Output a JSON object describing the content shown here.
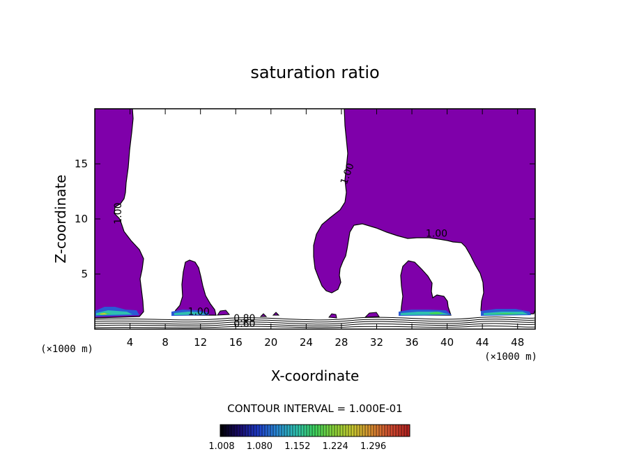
{
  "chart_data": {
    "type": "contour",
    "title": "saturation ratio",
    "xlabel": "X-coordinate",
    "ylabel": "Z-coordinate",
    "x_unit_label": "(×1000 m)",
    "xlim": [
      0,
      50
    ],
    "ylim": [
      0,
      20
    ],
    "x_ticks": [
      4,
      8,
      12,
      16,
      20,
      24,
      28,
      32,
      36,
      40,
      44,
      48
    ],
    "y_ticks": [
      5,
      10,
      15
    ],
    "contour_interval_text": "CONTOUR INTERVAL = 1.000E-01",
    "contour_labels": [
      {
        "text": "1.00",
        "x": 3.0,
        "z": 10.5
      },
      {
        "text": "1.00",
        "x": 29.0,
        "z": 14.0
      },
      {
        "text": "1.00",
        "x": 38.8,
        "z": 8.4
      },
      {
        "text": "1.00",
        "x": 11.8,
        "z": 1.3
      },
      {
        "text": "0.80",
        "x": 17.0,
        "z": 0.7
      },
      {
        "text": "0.60",
        "x": 17.0,
        "z": 0.2
      }
    ],
    "supersaturated_fill_color": "#7f00aa",
    "colorbar": {
      "tick_labels": [
        "1.008",
        "1.080",
        "1.152",
        "1.224",
        "1.296"
      ],
      "colors": [
        "#000000",
        "#1a0b6b",
        "#1e3cc8",
        "#2a8ad4",
        "#2ec0b0",
        "#3ed25c",
        "#8ad23a",
        "#c8c830",
        "#d88a30",
        "#d04a30",
        "#b02020"
      ]
    },
    "regions_above_1": [
      {
        "name": "left column",
        "x_range": [
          0,
          5.6
        ],
        "z_range": [
          0.9,
          20
        ]
      },
      {
        "name": "cell at x≈10",
        "x_range": [
          9.3,
          13.0
        ],
        "z_range": [
          1.1,
          6.2
        ]
      },
      {
        "name": "upper right cloud",
        "x_range": [
          25.2,
          50
        ],
        "z_range": [
          2.8,
          20
        ]
      },
      {
        "name": "cell at x≈37",
        "x_range": [
          35.2,
          40.7
        ],
        "z_range": [
          1.1,
          6.2
        ]
      }
    ]
  }
}
